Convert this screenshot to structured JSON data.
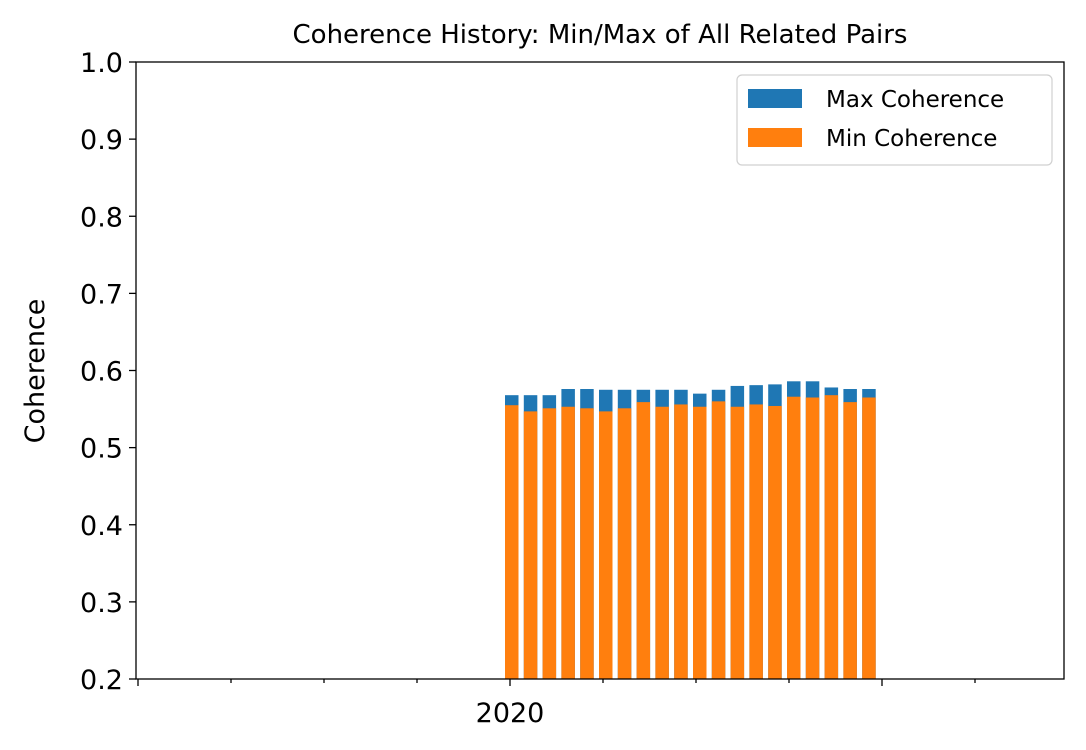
{
  "chart_data": {
    "type": "bar",
    "title": "Coherence History: Min/Max of All Related Pairs",
    "xlabel": "",
    "ylabel": "Coherence",
    "ylim": [
      0.2,
      1.0
    ],
    "yticks": [
      "0.2",
      "0.3",
      "0.4",
      "0.5",
      "0.6",
      "0.7",
      "0.8",
      "0.9",
      "1.0"
    ],
    "xtick_labels": [
      "2020"
    ],
    "grid": false,
    "legend_position": "top-right",
    "series": [
      {
        "name": "Max Coherence",
        "color": "#1f77b4",
        "values": [
          0.568,
          0.568,
          0.568,
          0.576,
          0.576,
          0.575,
          0.575,
          0.575,
          0.575,
          0.575,
          0.57,
          0.575,
          0.58,
          0.581,
          0.582,
          0.586,
          0.586,
          0.578,
          0.576,
          0.576
        ]
      },
      {
        "name": "Min Coherence",
        "color": "#ff7f0e",
        "values": [
          0.555,
          0.547,
          0.551,
          0.553,
          0.551,
          0.547,
          0.551,
          0.559,
          0.553,
          0.556,
          0.553,
          0.56,
          0.553,
          0.556,
          0.554,
          0.566,
          0.565,
          0.568,
          0.559,
          0.565
        ]
      }
    ]
  }
}
